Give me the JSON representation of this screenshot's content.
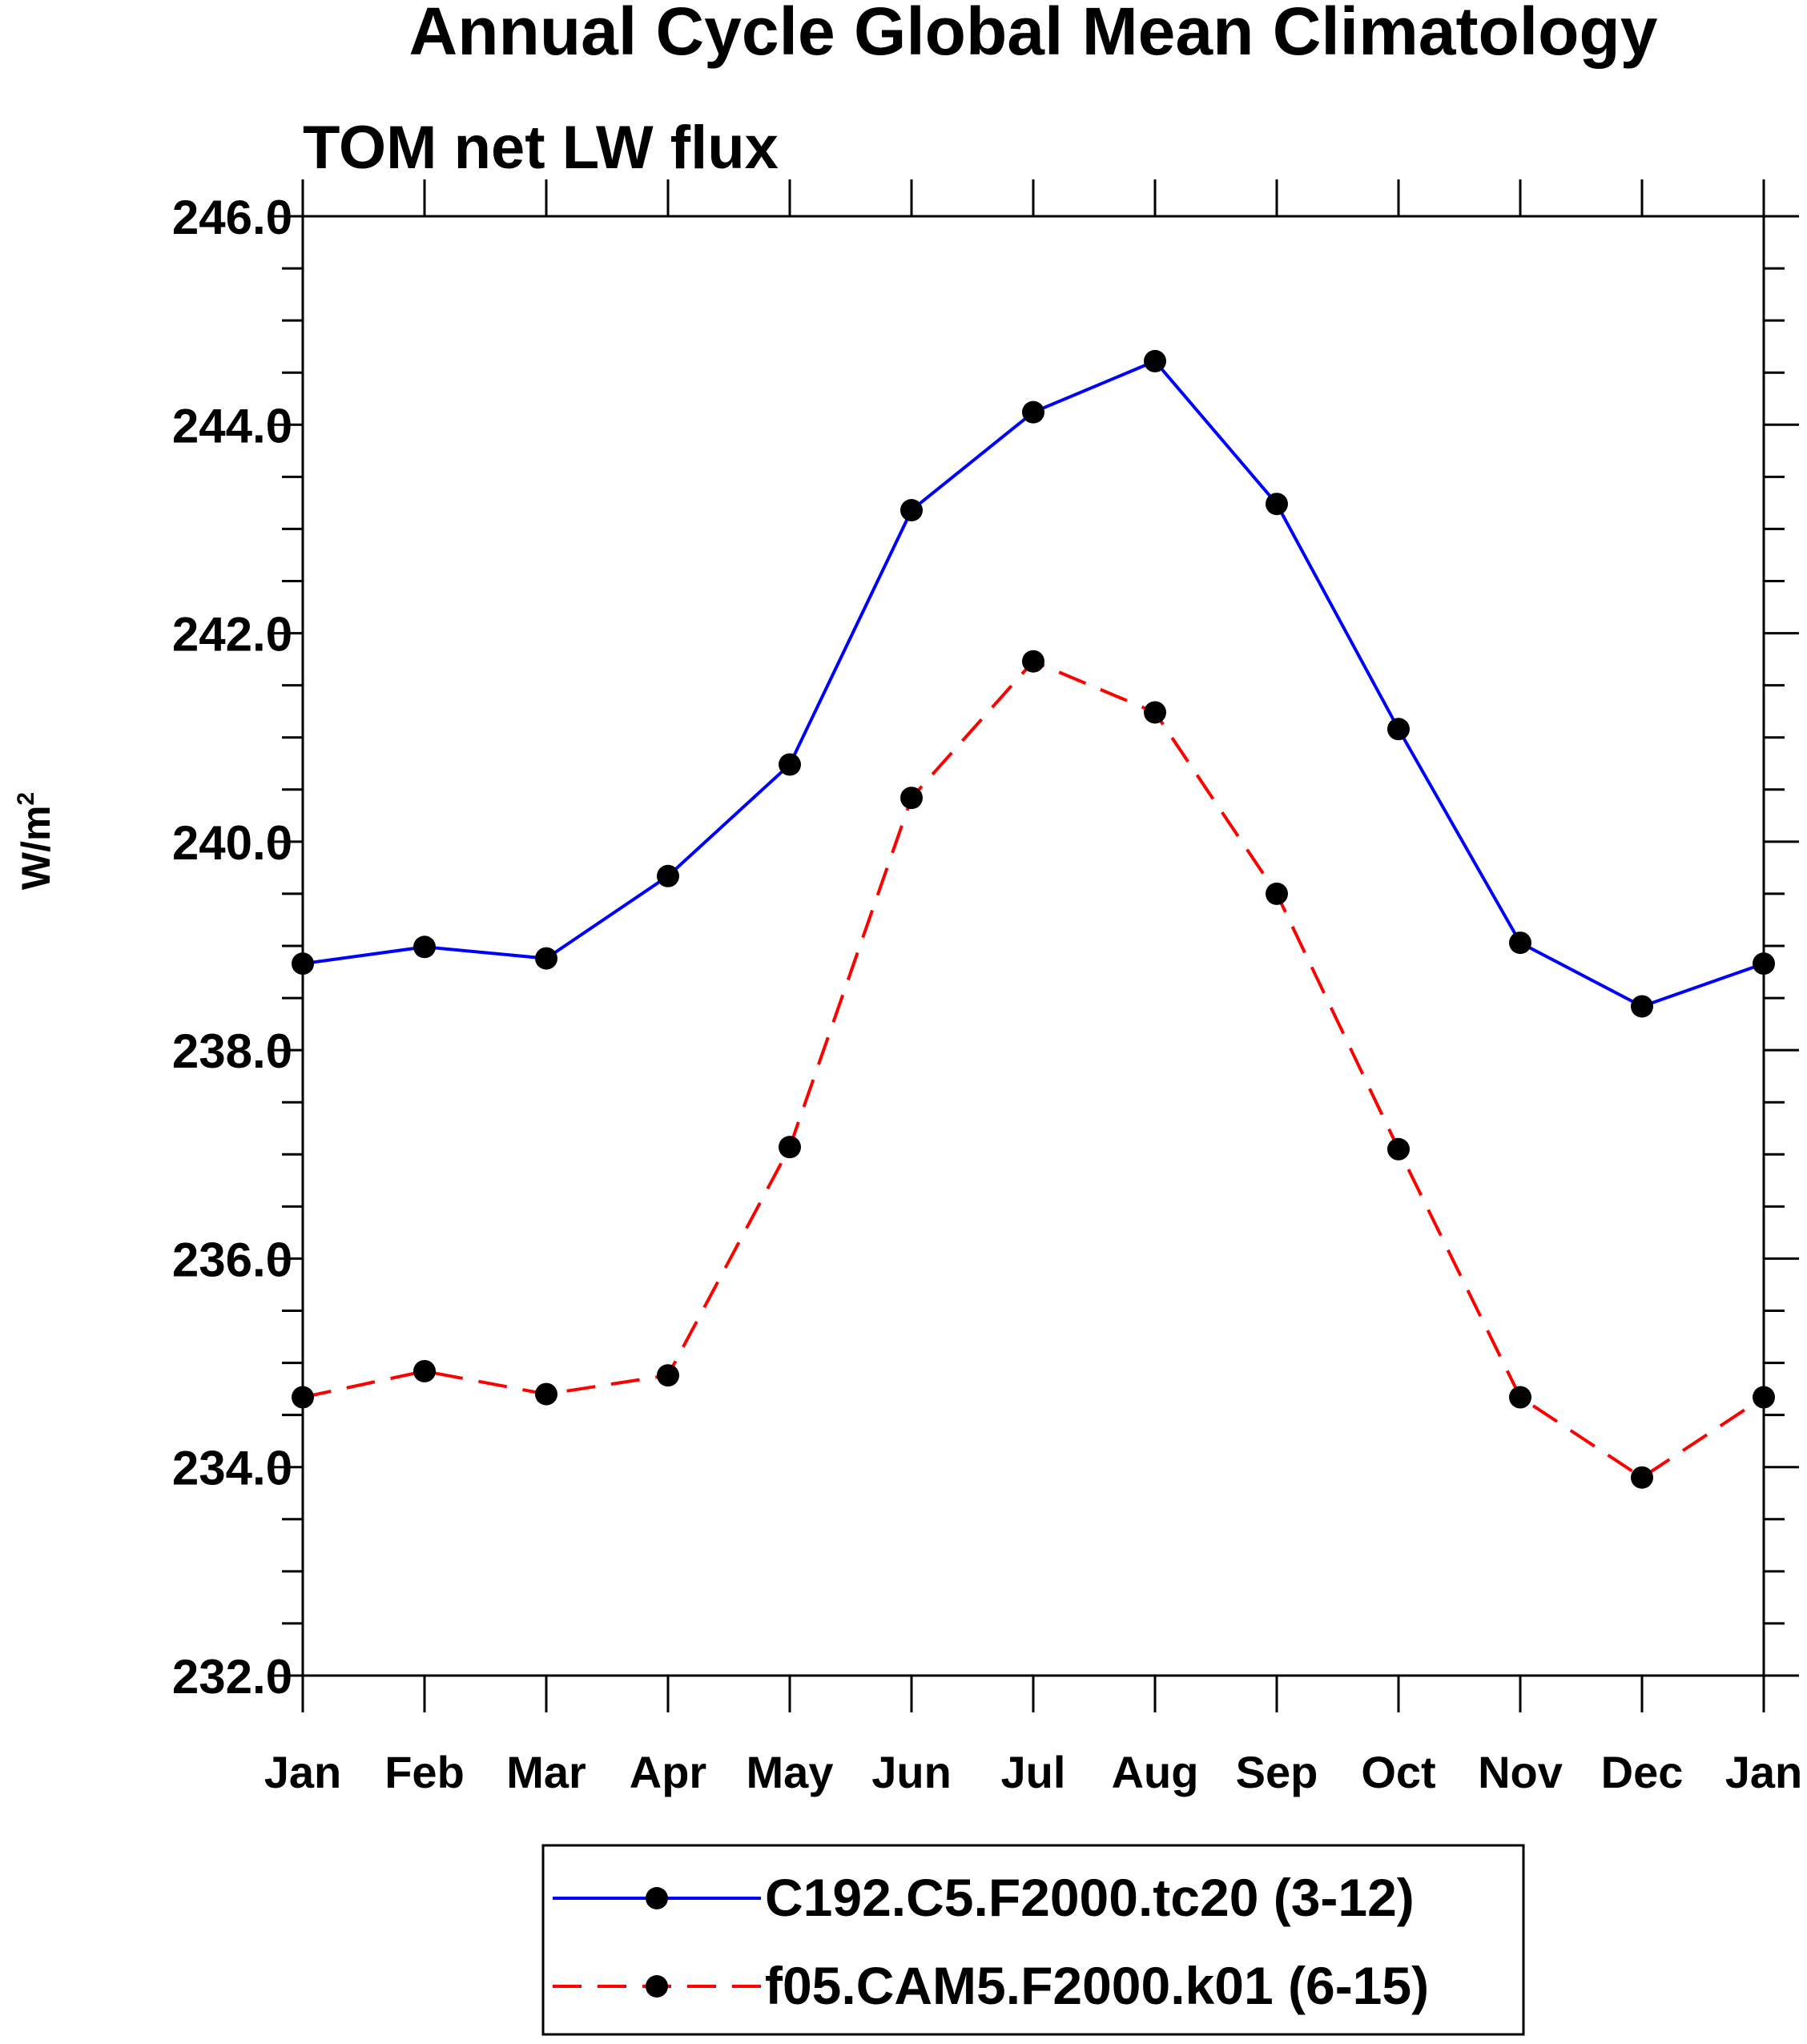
{
  "chart_data": {
    "type": "line",
    "title": "Annual Cycle Global Mean Climatology",
    "subtitle": "TOM net LW flux",
    "ylabel": "W/m",
    "ylabel_superscript": "2",
    "xlabel": "",
    "categories": [
      "Jan",
      "Feb",
      "Mar",
      "Apr",
      "May",
      "Jun",
      "Jul",
      "Aug",
      "Sep",
      "Oct",
      "Nov",
      "Dec",
      "Jan"
    ],
    "ylim": [
      232.0,
      246.0
    ],
    "yticks": [
      "232.0",
      "234.0",
      "236.0",
      "238.0",
      "240.0",
      "242.0",
      "244.0",
      "246.0"
    ],
    "grid": false,
    "legend_position": "bottom-center",
    "series": [
      {
        "name": "C192.C5.F2000.tc20 (3-12)",
        "color": "#0000ff",
        "dash": "solid",
        "marker": "filled-circle",
        "values": [
          238.83,
          238.99,
          238.88,
          239.67,
          240.74,
          243.18,
          244.12,
          244.61,
          243.24,
          241.08,
          239.03,
          238.42,
          238.83
        ]
      },
      {
        "name": "f05.CAM5.F2000.k01 (6-15)",
        "color": "#ff0000",
        "dash": "dashed",
        "marker": "filled-circle",
        "values": [
          234.67,
          234.92,
          234.7,
          234.88,
          237.07,
          240.42,
          241.73,
          241.24,
          239.5,
          237.05,
          234.67,
          233.9,
          234.67
        ]
      }
    ]
  }
}
